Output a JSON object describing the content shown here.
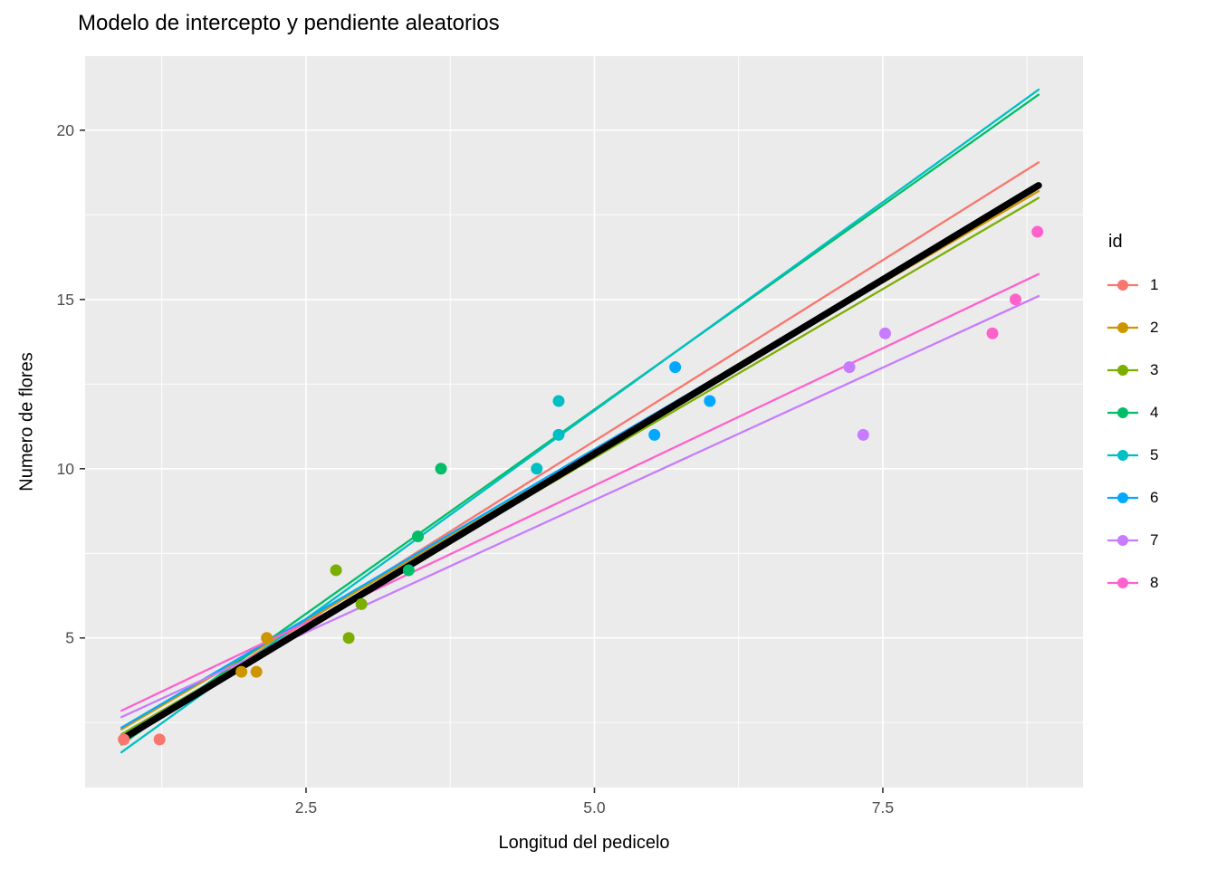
{
  "title": "Modelo de intercepto y pendiente aleatorios",
  "chart_data": {
    "type": "scatter",
    "title": "Modelo de intercepto y pendiente aleatorios",
    "xlabel": "Longitud del pedicelo",
    "ylabel": "Numero de flores",
    "legend_title": "id",
    "legend_position": "right",
    "grid": true,
    "xlim": [
      0.585,
      9.235
    ],
    "ylim": [
      0.58,
      22.19
    ],
    "xticks": [
      {
        "value": 2.5,
        "label": "2.5"
      },
      {
        "value": 5.0,
        "label": "5.0"
      },
      {
        "value": 7.5,
        "label": "7.5"
      }
    ],
    "yticks": [
      {
        "value": 5,
        "label": "5"
      },
      {
        "value": 10,
        "label": "10"
      },
      {
        "value": 15,
        "label": "15"
      },
      {
        "value": 20,
        "label": "20"
      }
    ],
    "x_minor": [
      1.25,
      3.75,
      6.25,
      8.75
    ],
    "y_minor": [
      2.5,
      7.5,
      12.5,
      17.5
    ],
    "colors": {
      "panel_bg": "#EBEBEB",
      "grid": "#FFFFFF",
      "tick_text": "#4D4D4D",
      "tick_mark": "#333333",
      "axis_title": "#000000",
      "overall_line": "#000000"
    },
    "series": [
      {
        "id": "1",
        "color": "#F8766D",
        "points": [
          [
            0.92,
            2
          ],
          [
            1.23,
            2
          ]
        ],
        "line": [
          [
            0.9,
            2.05
          ],
          [
            8.85,
            19.05
          ]
        ]
      },
      {
        "id": "2",
        "color": "#CD9600",
        "points": [
          [
            1.94,
            4
          ],
          [
            2.07,
            4
          ],
          [
            2.16,
            5
          ]
        ],
        "line": [
          [
            0.9,
            2.3
          ],
          [
            8.85,
            18.2
          ]
        ]
      },
      {
        "id": "3",
        "color": "#7CAE00",
        "points": [
          [
            2.76,
            7
          ],
          [
            2.87,
            5
          ],
          [
            2.98,
            6
          ]
        ],
        "line": [
          [
            0.9,
            2.15
          ],
          [
            8.85,
            18.0
          ]
        ]
      },
      {
        "id": "4",
        "color": "#00BE67",
        "points": [
          [
            3.39,
            7
          ],
          [
            3.47,
            8
          ],
          [
            3.67,
            10
          ]
        ],
        "line": [
          [
            0.9,
            1.85
          ],
          [
            8.85,
            21.05
          ]
        ]
      },
      {
        "id": "5",
        "color": "#00BFC4",
        "points": [
          [
            4.5,
            10
          ],
          [
            4.69,
            11
          ],
          [
            4.69,
            12
          ]
        ],
        "line": [
          [
            0.9,
            1.62
          ],
          [
            8.85,
            21.2
          ]
        ]
      },
      {
        "id": "6",
        "color": "#00A9FF",
        "points": [
          [
            5.52,
            11
          ],
          [
            5.7,
            13
          ],
          [
            6.0,
            12
          ]
        ],
        "line": [
          [
            0.9,
            2.35
          ],
          [
            8.85,
            18.3
          ]
        ]
      },
      {
        "id": "7",
        "color": "#C77CFF",
        "points": [
          [
            7.21,
            13
          ],
          [
            7.33,
            11
          ],
          [
            7.52,
            14
          ]
        ],
        "line": [
          [
            0.9,
            2.66
          ],
          [
            8.85,
            15.1
          ]
        ]
      },
      {
        "id": "8",
        "color": "#FF61CC",
        "points": [
          [
            8.45,
            14
          ],
          [
            8.65,
            15
          ],
          [
            8.84,
            17
          ]
        ],
        "line": [
          [
            0.9,
            2.85
          ],
          [
            8.85,
            15.75
          ]
        ]
      }
    ],
    "overall_line": {
      "name": "fixed-effects-fit",
      "color": "#000000",
      "width": 7.5,
      "line": [
        [
          0.9,
          2.0
        ],
        [
          8.85,
          18.37
        ]
      ]
    }
  }
}
